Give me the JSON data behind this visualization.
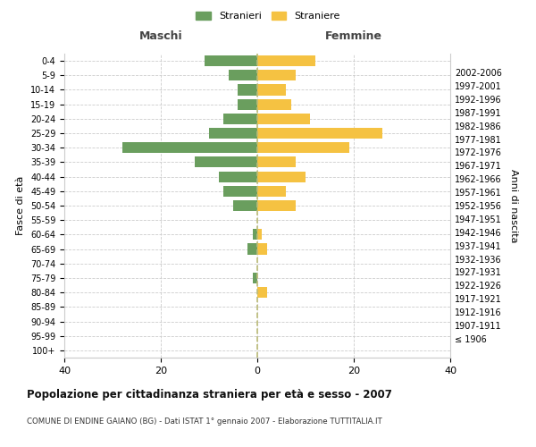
{
  "age_groups": [
    "100+",
    "95-99",
    "90-94",
    "85-89",
    "80-84",
    "75-79",
    "70-74",
    "65-69",
    "60-64",
    "55-59",
    "50-54",
    "45-49",
    "40-44",
    "35-39",
    "30-34",
    "25-29",
    "20-24",
    "15-19",
    "10-14",
    "5-9",
    "0-4"
  ],
  "birth_years": [
    "≤ 1906",
    "1907-1911",
    "1912-1916",
    "1917-1921",
    "1922-1926",
    "1927-1931",
    "1932-1936",
    "1937-1941",
    "1942-1946",
    "1947-1951",
    "1952-1956",
    "1957-1961",
    "1962-1966",
    "1967-1971",
    "1972-1976",
    "1977-1981",
    "1982-1986",
    "1987-1991",
    "1992-1996",
    "1997-2001",
    "2002-2006"
  ],
  "males": [
    0,
    0,
    0,
    0,
    0,
    1,
    0,
    2,
    1,
    0,
    5,
    7,
    8,
    13,
    28,
    10,
    7,
    4,
    4,
    6,
    11
  ],
  "females": [
    0,
    0,
    0,
    0,
    2,
    0,
    0,
    2,
    1,
    0,
    8,
    6,
    10,
    8,
    19,
    26,
    11,
    7,
    6,
    8,
    12
  ],
  "male_color": "#6a9e5e",
  "female_color": "#f5c242",
  "background_color": "#ffffff",
  "grid_color": "#cccccc",
  "title": "Popolazione per cittadinanza straniera per età e sesso - 2007",
  "subtitle": "COMUNE DI ENDINE GAIANO (BG) - Dati ISTAT 1° gennaio 2007 - Elaborazione TUTTITALIA.IT",
  "ylabel_left": "Fasce di età",
  "ylabel_right": "Anni di nascita",
  "xlabel_left": "Maschi",
  "xlabel_right": "Femmine",
  "legend_male": "Stranieri",
  "legend_female": "Straniere",
  "xlim": 40,
  "center_line_color": "#aaaaaa"
}
